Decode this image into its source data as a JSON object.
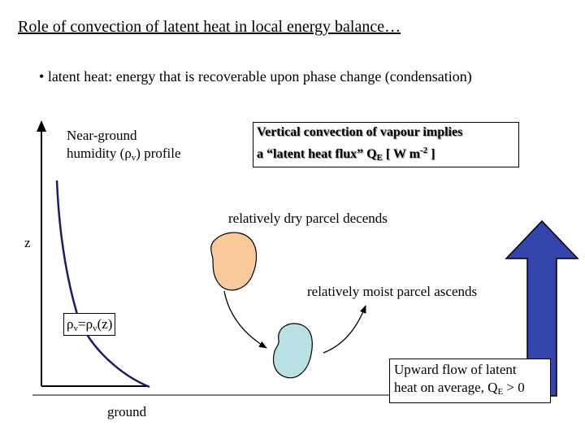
{
  "title": "Role of convection of latent heat in local energy balance…",
  "bullet": {
    "marker": "•",
    "text": "latent heat: energy that is recoverable upon phase change (condensation)"
  },
  "profile_label": {
    "line1": "Near-ground",
    "line2_pre": "humidity (",
    "rho": "ρ",
    "sub": "v",
    "line2_post": ") profile"
  },
  "convection_note": {
    "line1": "Vertical convection of vapour implies",
    "line2_pre": "a “latent heat flux” Q",
    "sub": "E",
    "line2_mid": " [ W m",
    "sup": "-2",
    "line2_post": " ]"
  },
  "dry_parcel_label": "relatively dry parcel decends",
  "moist_parcel_label": "relatively moist parcel ascends",
  "z_axis_label": "z",
  "profile_equation": {
    "rho1": "ρ",
    "sub1": "v",
    "equals": "=",
    "rho2": "ρ",
    "sub2": "v",
    "arg": "(z)"
  },
  "upward_flow_note": {
    "line1": "Upward flow of latent",
    "line2_pre": "heat on average, Q",
    "sub": "E",
    "line2_post": " > 0"
  },
  "ground_label": "ground",
  "colors": {
    "dry_parcel_fill": "#f9c99a",
    "moist_parcel_fill": "#b9e1e3",
    "profile_curve": "#1a1a6e",
    "flux_arrow_fill": "#3344aa"
  }
}
